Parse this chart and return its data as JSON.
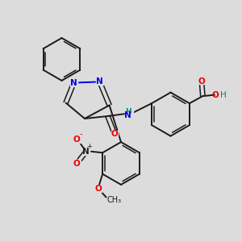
{
  "background_color": "#dcdcdc",
  "bond_color": "#1a1a1a",
  "N_color": "#0000ee",
  "O_color": "#ee0000",
  "H_color": "#008080",
  "C_color": "#1a1a1a",
  "figsize": [
    3.0,
    3.0
  ],
  "dpi": 100,
  "xlim": [
    0,
    10
  ],
  "ylim": [
    0,
    10
  ]
}
